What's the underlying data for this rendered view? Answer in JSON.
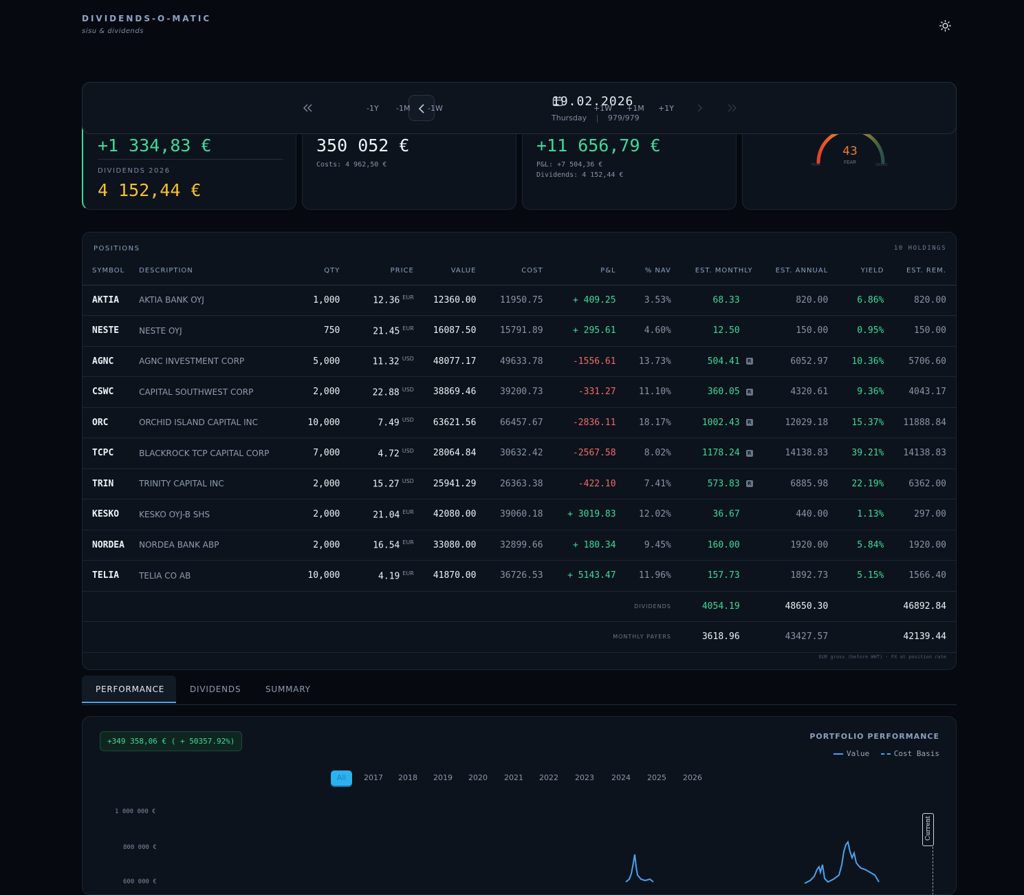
{
  "brand": {
    "title": "DIVIDENDS-O-MATIC",
    "subtitle": "sisu & dividends"
  },
  "datebar": {
    "back1y": "-1Y",
    "back1m": "-1M",
    "back1w": "-1W",
    "date": "19.02.2026",
    "weekday": "Thursday",
    "sep": "|",
    "index": "979/979",
    "fwd1w": "+1W",
    "fwd1m": "+1M",
    "fwd1y": "+1Y"
  },
  "summary": {
    "card1": {
      "value": "+1 334,83 €",
      "label": "DIVIDENDS 2026",
      "value2": "4 152,44 €"
    },
    "card2": {
      "value": "350 052 €",
      "sub": "Costs: 4 962,50 €"
    },
    "card3": {
      "value": "+11 656,79 €",
      "sub1": "P&L: +7 504,36 €",
      "sub2": "Dividends: 4 152,44 €"
    },
    "gauge": {
      "value": "43",
      "label": "FEAR",
      "left": "FEAR",
      "right": "GREED",
      "level": 0.43
    }
  },
  "positions": {
    "title": "POSITIONS",
    "count": "10 HOLDINGS",
    "columns": [
      "SYMBOL",
      "DESCRIPTION",
      "QTY",
      "PRICE",
      "VALUE",
      "COST",
      "P&L",
      "% NAV",
      "EST. MONTHLY",
      "EST. ANNUAL",
      "YIELD",
      "EST. REM."
    ],
    "rows": [
      {
        "sym": "AKTIA",
        "desc": "AKTIA BANK OYJ",
        "qty": "1,000",
        "price": "12.36",
        "cur": "EUR",
        "value": "12360.00",
        "cost": "11950.75",
        "pl": "+ 409.25",
        "nav": "3.53%",
        "monthly": "68.33",
        "badge": "",
        "annual": "820.00",
        "yield": "6.86%",
        "rem": "820.00"
      },
      {
        "sym": "NESTE",
        "desc": "NESTE OYJ",
        "qty": "750",
        "price": "21.45",
        "cur": "EUR",
        "value": "16087.50",
        "cost": "15791.89",
        "pl": "+ 295.61",
        "nav": "4.60%",
        "monthly": "12.50",
        "badge": "",
        "annual": "150.00",
        "yield": "0.95%",
        "rem": "150.00"
      },
      {
        "sym": "AGNC",
        "desc": "AGNC INVESTMENT CORP",
        "qty": "5,000",
        "price": "11.32",
        "cur": "USD",
        "value": "48077.17",
        "cost": "49633.78",
        "pl": "-1556.61",
        "nav": "13.73%",
        "monthly": "504.41",
        "badge": "R",
        "annual": "6052.97",
        "yield": "10.36%",
        "rem": "5706.60"
      },
      {
        "sym": "CSWC",
        "desc": "CAPITAL SOUTHWEST CORP",
        "qty": "2,000",
        "price": "22.88",
        "cur": "USD",
        "value": "38869.46",
        "cost": "39200.73",
        "pl": "-331.27",
        "nav": "11.10%",
        "monthly": "360.05",
        "badge": "R",
        "annual": "4320.61",
        "yield": "9.36%",
        "rem": "4043.17"
      },
      {
        "sym": "ORC",
        "desc": "ORCHID ISLAND CAPITAL INC",
        "qty": "10,000",
        "price": "7.49",
        "cur": "USD",
        "value": "63621.56",
        "cost": "66457.67",
        "pl": "-2836.11",
        "nav": "18.17%",
        "monthly": "1002.43",
        "badge": "R",
        "annual": "12029.18",
        "yield": "15.37%",
        "rem": "11888.84"
      },
      {
        "sym": "TCPC",
        "desc": "BLACKROCK TCP CAPITAL CORP",
        "qty": "7,000",
        "price": "4.72",
        "cur": "USD",
        "value": "28064.84",
        "cost": "30632.42",
        "pl": "-2567.58",
        "nav": "8.02%",
        "monthly": "1178.24",
        "badge": "R",
        "annual": "14138.83",
        "yield": "39.21%",
        "rem": "14138.83"
      },
      {
        "sym": "TRIN",
        "desc": "TRINITY CAPITAL INC",
        "qty": "2,000",
        "price": "15.27",
        "cur": "USD",
        "value": "25941.29",
        "cost": "26363.38",
        "pl": "-422.10",
        "nav": "7.41%",
        "monthly": "573.83",
        "badge": "R",
        "annual": "6885.98",
        "yield": "22.19%",
        "rem": "6362.00"
      },
      {
        "sym": "KESKO",
        "desc": "KESKO OYJ-B SHS",
        "qty": "2,000",
        "price": "21.04",
        "cur": "EUR",
        "value": "42080.00",
        "cost": "39060.18",
        "pl": "+ 3019.83",
        "nav": "12.02%",
        "monthly": "36.67",
        "badge": "",
        "annual": "440.00",
        "yield": "1.13%",
        "rem": "297.00"
      },
      {
        "sym": "NORDEA",
        "desc": "NORDEA BANK ABP",
        "qty": "2,000",
        "price": "16.54",
        "cur": "EUR",
        "value": "33080.00",
        "cost": "32899.66",
        "pl": "+ 180.34",
        "nav": "9.45%",
        "monthly": "160.00",
        "badge": "",
        "annual": "1920.00",
        "yield": "5.84%",
        "rem": "1920.00"
      },
      {
        "sym": "TELIA",
        "desc": "TELIA CO AB",
        "qty": "10,000",
        "price": "4.19",
        "cur": "EUR",
        "value": "41870.00",
        "cost": "36726.53",
        "pl": "+ 5143.47",
        "nav": "11.96%",
        "monthly": "157.73",
        "badge": "",
        "annual": "1892.73",
        "yield": "5.15%",
        "rem": "1566.40"
      }
    ],
    "totals": [
      {
        "label": "DIVIDENDS",
        "monthly": "4054.19",
        "annual": "48650.30",
        "rem": "46892.84"
      },
      {
        "label": "MONTHLY PAYERS",
        "monthly": "3618.96",
        "annual": "43427.57",
        "rem": "42139.44"
      }
    ],
    "footnote": "EUR gross (before WHT) · FX at position rate"
  },
  "tabs": [
    "PERFORMANCE",
    "DIVIDENDS",
    "SUMMARY"
  ],
  "performance": {
    "badge": "+349 358,06 € ( + 50357.92%)",
    "title": "PORTFOLIO PERFORMANCE",
    "legend_value": "Value",
    "legend_cost": "Cost Basis",
    "years": [
      "All",
      "2017",
      "2018",
      "2019",
      "2020",
      "2021",
      "2022",
      "2023",
      "2024",
      "2025",
      "2026"
    ],
    "current_label": "Current"
  },
  "chart_data": {
    "type": "line",
    "title": "PORTFOLIO PERFORMANCE",
    "y_ticks": [
      "1 000 000 €",
      "800 000 €",
      "600 000 €"
    ],
    "series": [
      {
        "name": "Value"
      },
      {
        "name": "Cost Basis"
      }
    ],
    "colors": {
      "value": "#4aa3f0",
      "cost": "#4aa3f0"
    }
  }
}
